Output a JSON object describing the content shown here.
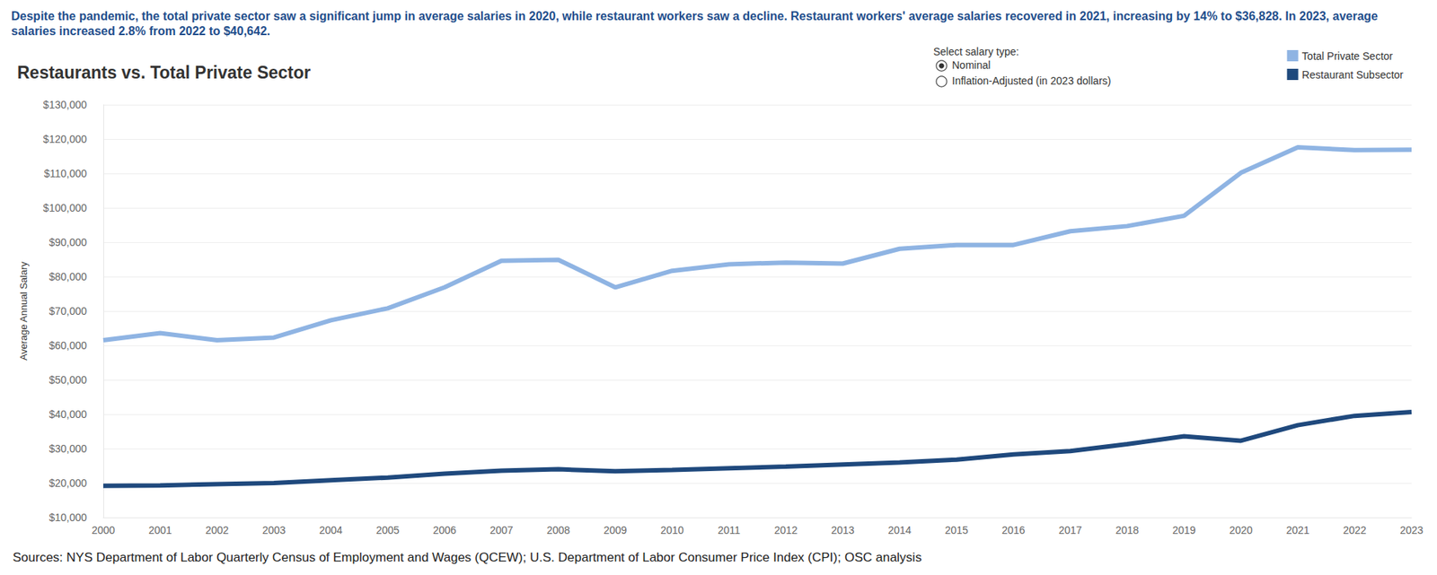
{
  "chart_data": {
    "type": "line",
    "title": "Restaurants vs. Total Private Sector",
    "subtitle": "Despite the pandemic, the total private sector saw a significant jump in average salaries in 2020, while restaurant workers saw a decline. Restaurant workers' average salaries recovered in 2021, increasing by 14% to $36,828. In 2023, average salaries increased 2.8% from 2022 to $40,642.",
    "y_label": "Average Annual Salary",
    "source": "Sources: NYS Department of Labor Quarterly Census of Employment and Wages (QCEW); U.S. Department of Labor Consumer Price Index (CPI); OSC analysis",
    "salary_type_selector": {
      "label": "Select salary type:",
      "options": [
        "Nominal",
        "Inflation-Adjusted (in 2023 dollars)"
      ]
    },
    "categories": [
      "2000",
      "2001",
      "2002",
      "2003",
      "2004",
      "2005",
      "2006",
      "2007",
      "2008",
      "2009",
      "2010",
      "2011",
      "2012",
      "2013",
      "2014",
      "2015",
      "2016",
      "2017",
      "2018",
      "2019",
      "2020",
      "2021",
      "2022",
      "2023"
    ],
    "series": [
      {
        "name": "Total Private Sector",
        "color": "#8fb4e3",
        "values": [
          61500,
          63600,
          61500,
          62300,
          67300,
          70800,
          76900,
          84600,
          84900,
          76900,
          81700,
          83600,
          84100,
          83800,
          88100,
          89200,
          89200,
          93200,
          94700,
          97700,
          110200,
          117600,
          116800,
          116900
        ]
      },
      {
        "name": "Restaurant Subsector",
        "color": "#1f497d",
        "values": [
          19200,
          19300,
          19700,
          20000,
          20800,
          21600,
          22700,
          23600,
          24000,
          23400,
          23800,
          24300,
          24800,
          25400,
          26000,
          26800,
          28300,
          29300,
          31300,
          33600,
          32300,
          36828,
          39535,
          40642
        ]
      }
    ],
    "ylim": [
      10000,
      130000
    ],
    "yticks": [
      {
        "value": 10000,
        "label": "$10,000"
      },
      {
        "value": 20000,
        "label": "$20,000"
      },
      {
        "value": 30000,
        "label": "$30,000"
      },
      {
        "value": 40000,
        "label": "$40,000"
      },
      {
        "value": 50000,
        "label": "$50,000"
      },
      {
        "value": 60000,
        "label": "$60,000"
      },
      {
        "value": 70000,
        "label": "$70,000"
      },
      {
        "value": 80000,
        "label": "$80,000"
      },
      {
        "value": 90000,
        "label": "$90,000"
      },
      {
        "value": 100000,
        "label": "$100,000"
      },
      {
        "value": 110000,
        "label": "$110,000"
      },
      {
        "value": 120000,
        "label": "$120,000"
      },
      {
        "value": 130000,
        "label": "$130,000"
      }
    ],
    "grid": true,
    "legend": "top-right"
  }
}
